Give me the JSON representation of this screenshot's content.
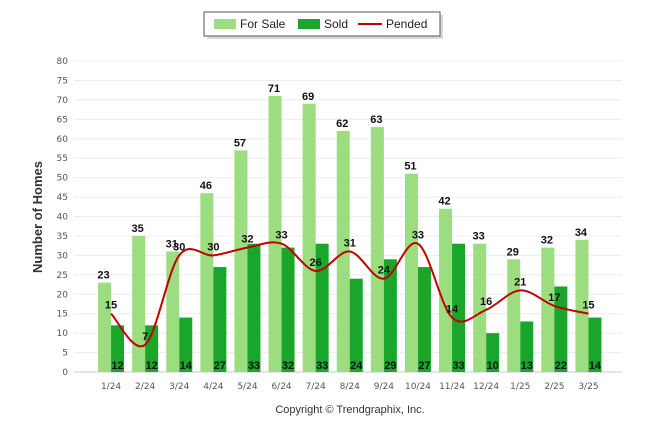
{
  "chart_data": {
    "type": "bar",
    "categories": [
      "1/24",
      "2/24",
      "3/24",
      "4/24",
      "5/24",
      "6/24",
      "7/24",
      "8/24",
      "9/24",
      "10/24",
      "11/24",
      "12/24",
      "1/25",
      "2/25",
      "3/25"
    ],
    "series": [
      {
        "name": "For Sale",
        "type": "bar",
        "color": "#9cdd7f",
        "values": [
          23,
          35,
          31,
          46,
          57,
          71,
          69,
          62,
          63,
          51,
          42,
          33,
          29,
          32,
          34
        ]
      },
      {
        "name": "Sold",
        "type": "bar",
        "color": "#1aa62a",
        "values": [
          12,
          12,
          14,
          27,
          33,
          32,
          33,
          24,
          29,
          27,
          33,
          10,
          13,
          22,
          14
        ]
      },
      {
        "name": "Pended",
        "type": "line",
        "color": "#c00000",
        "values": [
          15,
          7,
          30,
          30,
          32,
          33,
          26,
          31,
          24,
          33,
          14,
          16,
          21,
          17,
          15
        ]
      }
    ],
    "title": "",
    "xlabel": "",
    "ylabel": "Number of Homes",
    "ylim": [
      0,
      80
    ],
    "yticks": [
      0,
      5,
      10,
      15,
      20,
      25,
      30,
      35,
      40,
      45,
      50,
      55,
      60,
      65,
      70,
      75,
      80
    ],
    "grid": true,
    "legend_position": "top-center",
    "credit": "Copyright © Trendgraphix, Inc."
  }
}
